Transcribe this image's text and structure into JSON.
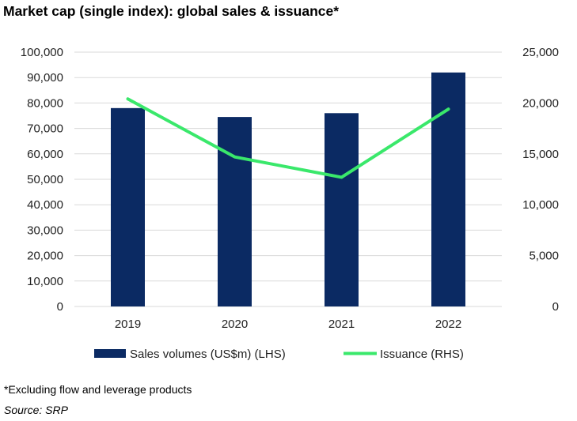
{
  "title": "Market cap (single index): global sales & issuance*",
  "footnote": "*Excluding flow and leverage products",
  "source": "Source: SRP",
  "colors": {
    "bar": "#0b2a63",
    "line": "#3ae86b",
    "grid": "#d9d9d9"
  },
  "chart_data": {
    "type": "bar",
    "categories": [
      "2019",
      "2020",
      "2021",
      "2022"
    ],
    "series": [
      {
        "name": "Sales volumes (US$m) (LHS)",
        "type": "bar",
        "axis": "left",
        "values": [
          78000,
          74500,
          76000,
          92000
        ]
      },
      {
        "name": "Issuance (RHS)",
        "type": "line",
        "axis": "right",
        "values": [
          20400,
          14700,
          12700,
          19400
        ]
      }
    ],
    "y_left": {
      "ylim": [
        0,
        100000
      ],
      "ticks": [
        "0",
        "10,000",
        "20,000",
        "30,000",
        "40,000",
        "50,000",
        "60,000",
        "70,000",
        "80,000",
        "90,000",
        "100,000"
      ]
    },
    "y_right": {
      "ylim": [
        0,
        25000
      ],
      "ticks": [
        "0",
        "5,000",
        "10,000",
        "15,000",
        "20,000",
        "25,000"
      ]
    },
    "grid": true,
    "legend_position": "bottom"
  }
}
